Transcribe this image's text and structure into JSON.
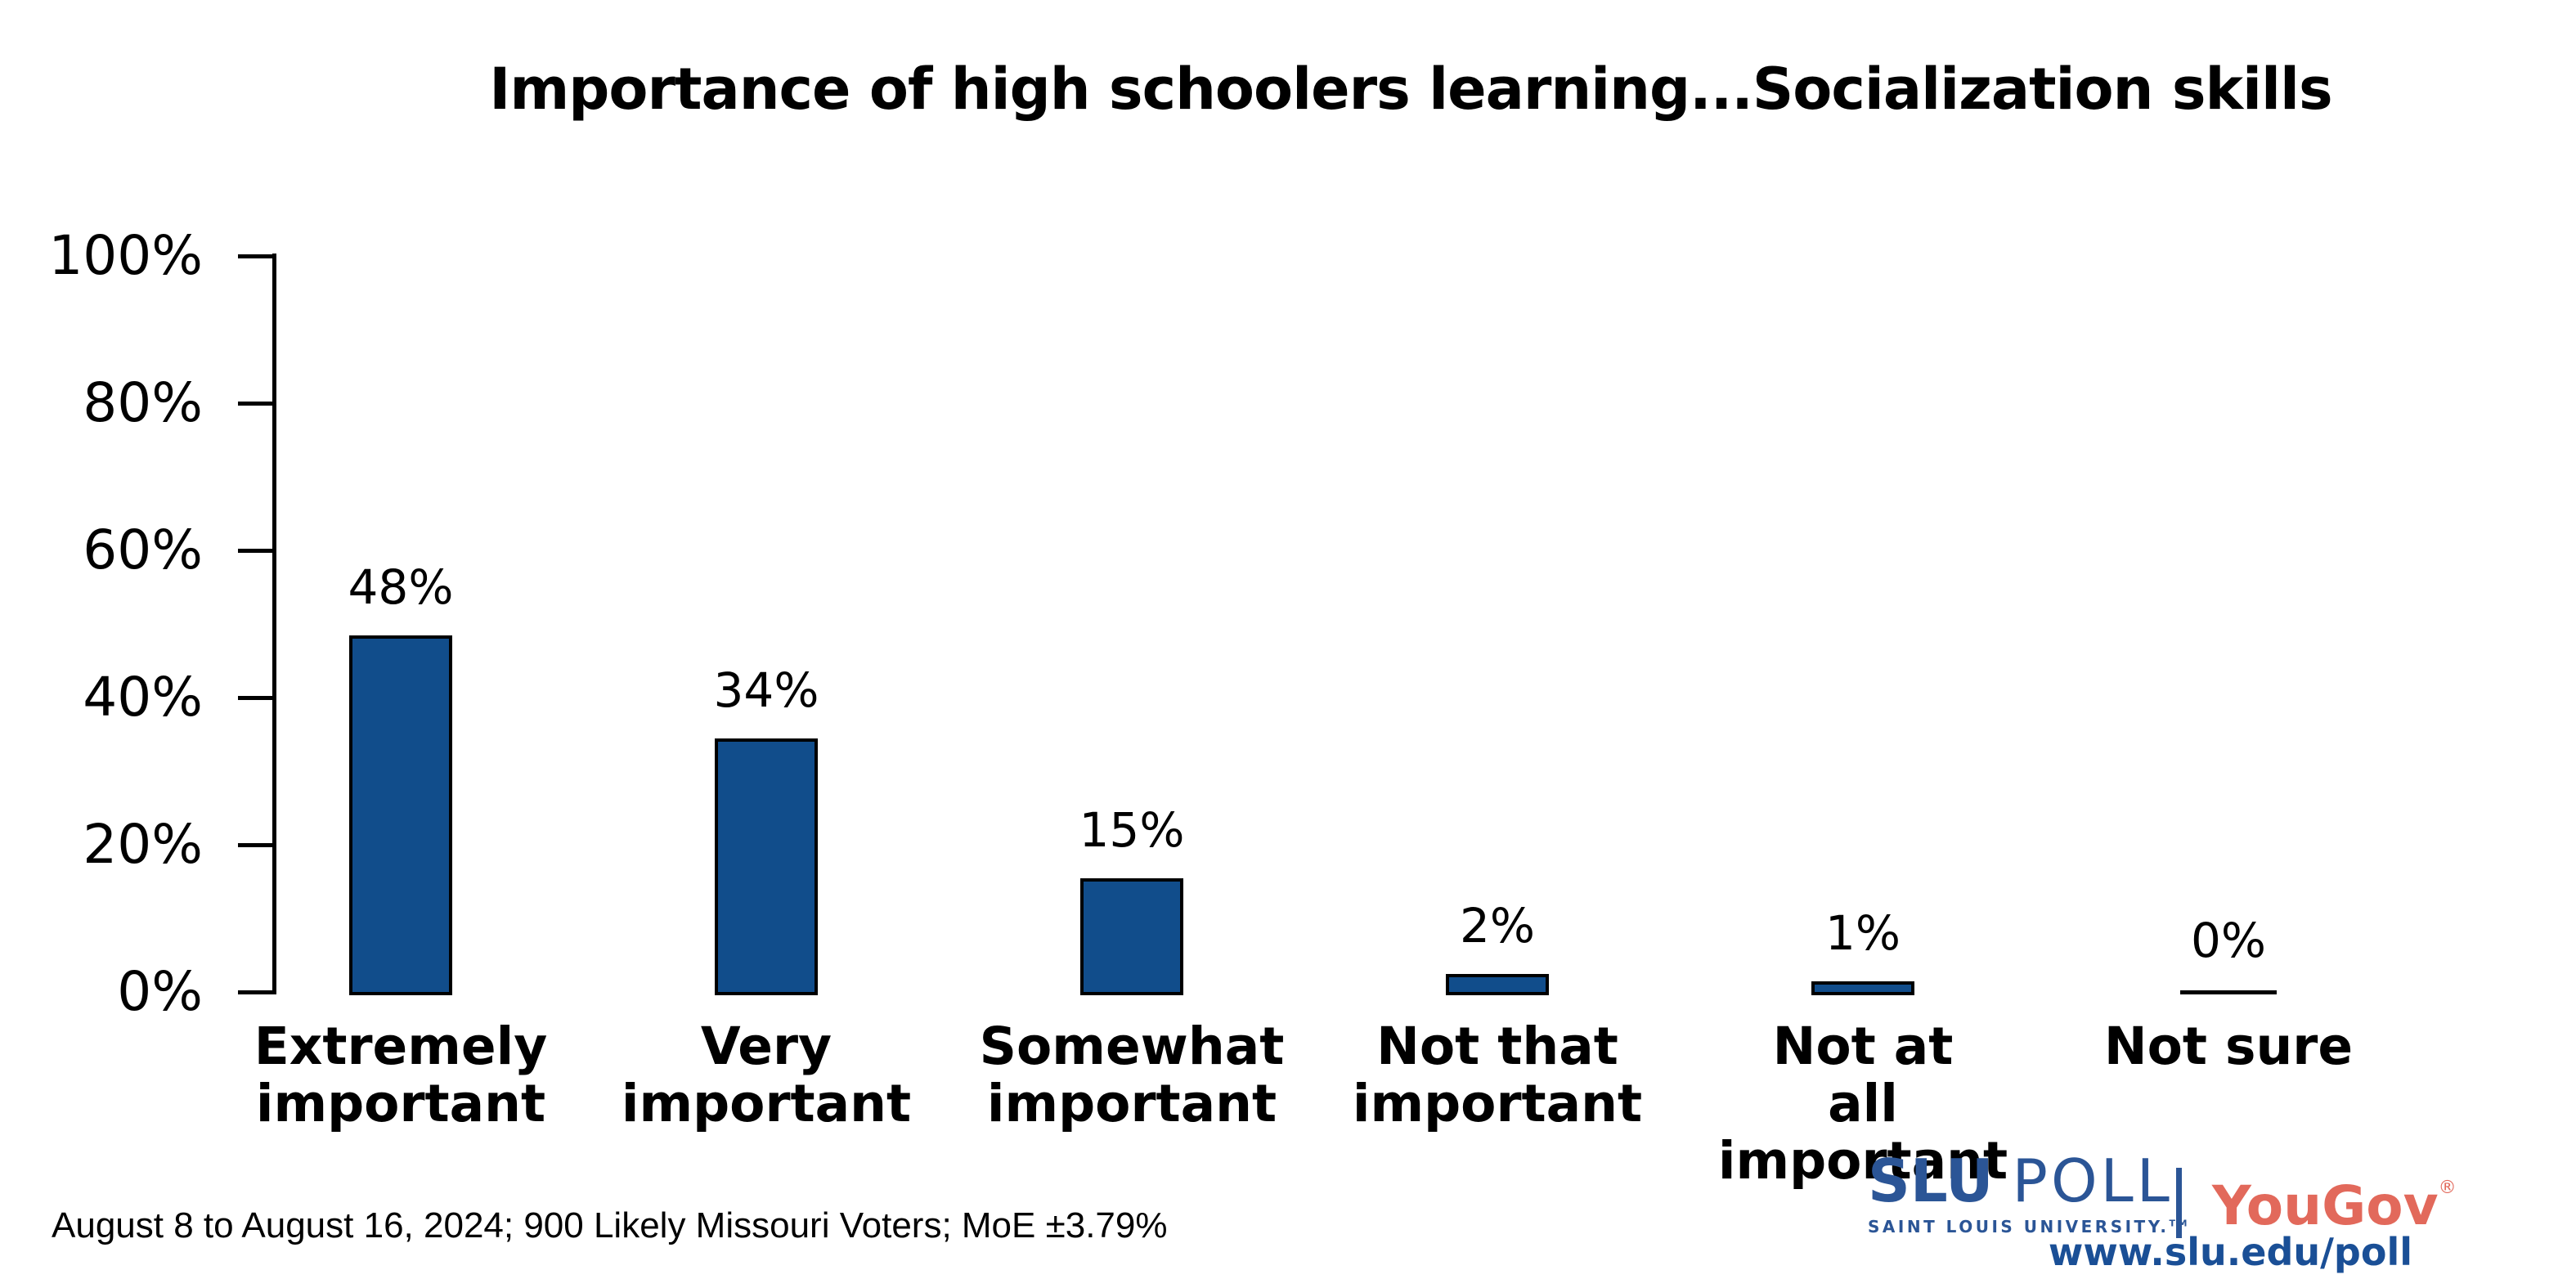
{
  "title": "Importance of high schoolers learning...Socialization skills",
  "chart_data": {
    "type": "bar",
    "title": "Importance of high schoolers learning...Socialization skills",
    "categories": [
      "Extremely important",
      "Very important",
      "Somewhat important",
      "Not that important",
      "Not at all important",
      "Not sure"
    ],
    "category_lines": [
      [
        "Extremely",
        "important"
      ],
      [
        "Very",
        "important"
      ],
      [
        "Somewhat",
        "important"
      ],
      [
        "Not that",
        "important"
      ],
      [
        "Not at",
        "all important"
      ],
      [
        "Not sure"
      ]
    ],
    "values": [
      48,
      34,
      15,
      2,
      1,
      0
    ],
    "value_labels": [
      "48%",
      "34%",
      "15%",
      "2%",
      "1%",
      "0%"
    ],
    "xlabel": "",
    "ylabel": "",
    "ylim": [
      0,
      100
    ],
    "yticks": [
      0,
      20,
      40,
      60,
      80,
      100
    ],
    "ytick_labels": [
      "0%",
      "20%",
      "40%",
      "60%",
      "80%",
      "100%"
    ],
    "grid": false,
    "legend": false,
    "bar_color": "#114D8B",
    "bar_border_color": "#000000",
    "axis_color": "#000000"
  },
  "footer": {
    "source_note": "August 8 to August 16, 2024; 900 Likely Missouri Voters; MoE ±3.79%"
  },
  "branding": {
    "slu_poll": {
      "name_bold": "SLU",
      "name_rest": "POLL",
      "subtitle": "SAINT LOUIS UNIVERSITY.",
      "trademark": "TM",
      "url": "www.slu.edu/poll",
      "blue": "#2B5596",
      "url_blue": "#1A4F96"
    },
    "yougov": {
      "name": "YouGov",
      "registered": "®",
      "color": "#E2695B"
    }
  }
}
